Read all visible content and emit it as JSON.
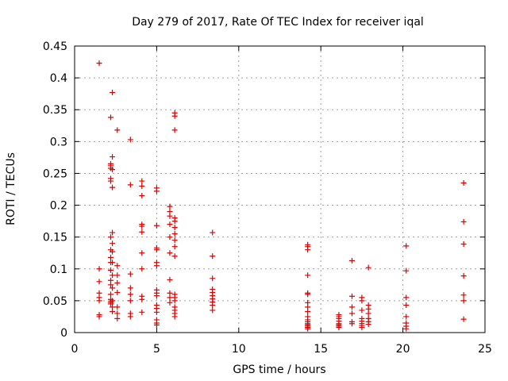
{
  "chart_data": {
    "type": "scatter",
    "title": "Day 279 of 2017, Rate Of TEC Index for receiver iqal",
    "xlabel": "GPS time / hours",
    "ylabel": "ROTI / TECUs",
    "xlim": [
      0,
      25
    ],
    "ylim": [
      0,
      0.45
    ],
    "xticks": [
      0,
      5,
      10,
      15,
      20,
      25
    ],
    "yticks": [
      0,
      0.05,
      0.1,
      0.15,
      0.2,
      0.25,
      0.3,
      0.35,
      0.4,
      0.45
    ],
    "ytick_labels": [
      "0",
      "0.05",
      "0.1",
      "0.15",
      "0.2",
      "0.25",
      "0.3",
      "0.35",
      "0.4",
      "0.45"
    ],
    "grid": true,
    "marker": "+",
    "color": "#e00000",
    "series": [
      {
        "points": [
          [
            1.5,
            0.423
          ],
          [
            1.5,
            0.1
          ],
          [
            1.5,
            0.08
          ],
          [
            1.5,
            0.062
          ],
          [
            1.5,
            0.055
          ],
          [
            1.5,
            0.05
          ],
          [
            1.5,
            0.028
          ],
          [
            1.5,
            0.025
          ],
          [
            2.2,
            0.338
          ],
          [
            2.2,
            0.265
          ],
          [
            2.2,
            0.262
          ],
          [
            2.2,
            0.258
          ],
          [
            2.2,
            0.242
          ],
          [
            2.2,
            0.238
          ],
          [
            2.2,
            0.15
          ],
          [
            2.2,
            0.13
          ],
          [
            2.2,
            0.118
          ],
          [
            2.2,
            0.11
          ],
          [
            2.2,
            0.098
          ],
          [
            2.2,
            0.082
          ],
          [
            2.2,
            0.075
          ],
          [
            2.2,
            0.06
          ],
          [
            2.2,
            0.052
          ],
          [
            2.2,
            0.048
          ],
          [
            2.2,
            0.045
          ],
          [
            2.3,
            0.377
          ],
          [
            2.3,
            0.276
          ],
          [
            2.3,
            0.256
          ],
          [
            2.3,
            0.228
          ],
          [
            2.3,
            0.157
          ],
          [
            2.3,
            0.14
          ],
          [
            2.3,
            0.127
          ],
          [
            2.3,
            0.11
          ],
          [
            2.3,
            0.09
          ],
          [
            2.3,
            0.07
          ],
          [
            2.3,
            0.05
          ],
          [
            2.3,
            0.04
          ],
          [
            2.3,
            0.033
          ],
          [
            2.6,
            0.318
          ],
          [
            2.6,
            0.105
          ],
          [
            2.6,
            0.09
          ],
          [
            2.6,
            0.078
          ],
          [
            2.6,
            0.063
          ],
          [
            2.6,
            0.04
          ],
          [
            2.6,
            0.03
          ],
          [
            2.6,
            0.022
          ],
          [
            3.4,
            0.303
          ],
          [
            3.4,
            0.232
          ],
          [
            3.4,
            0.092
          ],
          [
            3.4,
            0.07
          ],
          [
            3.4,
            0.06
          ],
          [
            3.4,
            0.05
          ],
          [
            3.4,
            0.03
          ],
          [
            3.4,
            0.025
          ],
          [
            4.1,
            0.238
          ],
          [
            4.1,
            0.23
          ],
          [
            4.1,
            0.215
          ],
          [
            4.1,
            0.17
          ],
          [
            4.1,
            0.167
          ],
          [
            4.1,
            0.158
          ],
          [
            4.1,
            0.125
          ],
          [
            4.1,
            0.1
          ],
          [
            4.1,
            0.057
          ],
          [
            4.1,
            0.052
          ],
          [
            4.1,
            0.032
          ],
          [
            5.0,
            0.227
          ],
          [
            5.0,
            0.222
          ],
          [
            5.0,
            0.168
          ],
          [
            5.0,
            0.133
          ],
          [
            5.0,
            0.13
          ],
          [
            5.0,
            0.11
          ],
          [
            5.0,
            0.105
          ],
          [
            5.0,
            0.067
          ],
          [
            5.0,
            0.062
          ],
          [
            5.0,
            0.058
          ],
          [
            5.0,
            0.043
          ],
          [
            5.0,
            0.038
          ],
          [
            5.0,
            0.032
          ],
          [
            5.0,
            0.02
          ],
          [
            5.0,
            0.015
          ],
          [
            5.0,
            0.012
          ],
          [
            5.8,
            0.198
          ],
          [
            5.8,
            0.19
          ],
          [
            5.8,
            0.183
          ],
          [
            5.8,
            0.17
          ],
          [
            5.8,
            0.15
          ],
          [
            5.8,
            0.125
          ],
          [
            5.8,
            0.083
          ],
          [
            5.8,
            0.062
          ],
          [
            5.8,
            0.055
          ],
          [
            5.8,
            0.047
          ],
          [
            6.1,
            0.345
          ],
          [
            6.1,
            0.34
          ],
          [
            6.1,
            0.318
          ],
          [
            6.1,
            0.18
          ],
          [
            6.1,
            0.175
          ],
          [
            6.1,
            0.165
          ],
          [
            6.1,
            0.155
          ],
          [
            6.1,
            0.145
          ],
          [
            6.1,
            0.135
          ],
          [
            6.1,
            0.12
          ],
          [
            6.1,
            0.06
          ],
          [
            6.1,
            0.055
          ],
          [
            6.1,
            0.05
          ],
          [
            6.1,
            0.04
          ],
          [
            6.1,
            0.035
          ],
          [
            6.1,
            0.03
          ],
          [
            6.1,
            0.025
          ],
          [
            8.4,
            0.157
          ],
          [
            8.4,
            0.12
          ],
          [
            8.4,
            0.085
          ],
          [
            8.4,
            0.068
          ],
          [
            8.4,
            0.063
          ],
          [
            8.4,
            0.058
          ],
          [
            8.4,
            0.053
          ],
          [
            8.4,
            0.048
          ],
          [
            8.4,
            0.043
          ],
          [
            8.4,
            0.035
          ],
          [
            14.2,
            0.138
          ],
          [
            14.2,
            0.135
          ],
          [
            14.2,
            0.13
          ],
          [
            14.2,
            0.09
          ],
          [
            14.2,
            0.062
          ],
          [
            14.2,
            0.06
          ],
          [
            14.2,
            0.047
          ],
          [
            14.2,
            0.04
          ],
          [
            14.2,
            0.033
          ],
          [
            14.2,
            0.025
          ],
          [
            14.2,
            0.02
          ],
          [
            14.2,
            0.017
          ],
          [
            14.2,
            0.014
          ],
          [
            14.2,
            0.012
          ],
          [
            14.2,
            0.01
          ],
          [
            14.2,
            0.008
          ],
          [
            14.2,
            0.006
          ],
          [
            16.1,
            0.028
          ],
          [
            16.1,
            0.025
          ],
          [
            16.1,
            0.022
          ],
          [
            16.1,
            0.018
          ],
          [
            16.1,
            0.014
          ],
          [
            16.1,
            0.012
          ],
          [
            16.1,
            0.01
          ],
          [
            16.1,
            0.008
          ],
          [
            16.9,
            0.113
          ],
          [
            16.9,
            0.057
          ],
          [
            16.9,
            0.04
          ],
          [
            16.9,
            0.03
          ],
          [
            16.9,
            0.017
          ],
          [
            16.9,
            0.014
          ],
          [
            17.5,
            0.055
          ],
          [
            17.5,
            0.05
          ],
          [
            17.5,
            0.035
          ],
          [
            17.5,
            0.022
          ],
          [
            17.5,
            0.018
          ],
          [
            17.5,
            0.014
          ],
          [
            17.5,
            0.011
          ],
          [
            17.5,
            0.008
          ],
          [
            17.9,
            0.102
          ],
          [
            17.9,
            0.043
          ],
          [
            17.9,
            0.037
          ],
          [
            17.9,
            0.03
          ],
          [
            17.9,
            0.022
          ],
          [
            17.9,
            0.017
          ],
          [
            17.9,
            0.013
          ],
          [
            20.2,
            0.136
          ],
          [
            20.2,
            0.097
          ],
          [
            20.2,
            0.055
          ],
          [
            20.2,
            0.043
          ],
          [
            20.2,
            0.025
          ],
          [
            20.2,
            0.015
          ],
          [
            20.2,
            0.01
          ],
          [
            20.2,
            0.006
          ],
          [
            23.7,
            0.235
          ],
          [
            23.7,
            0.174
          ],
          [
            23.7,
            0.139
          ],
          [
            23.7,
            0.089
          ],
          [
            23.7,
            0.059
          ],
          [
            23.7,
            0.05
          ],
          [
            23.7,
            0.021
          ]
        ]
      }
    ]
  }
}
